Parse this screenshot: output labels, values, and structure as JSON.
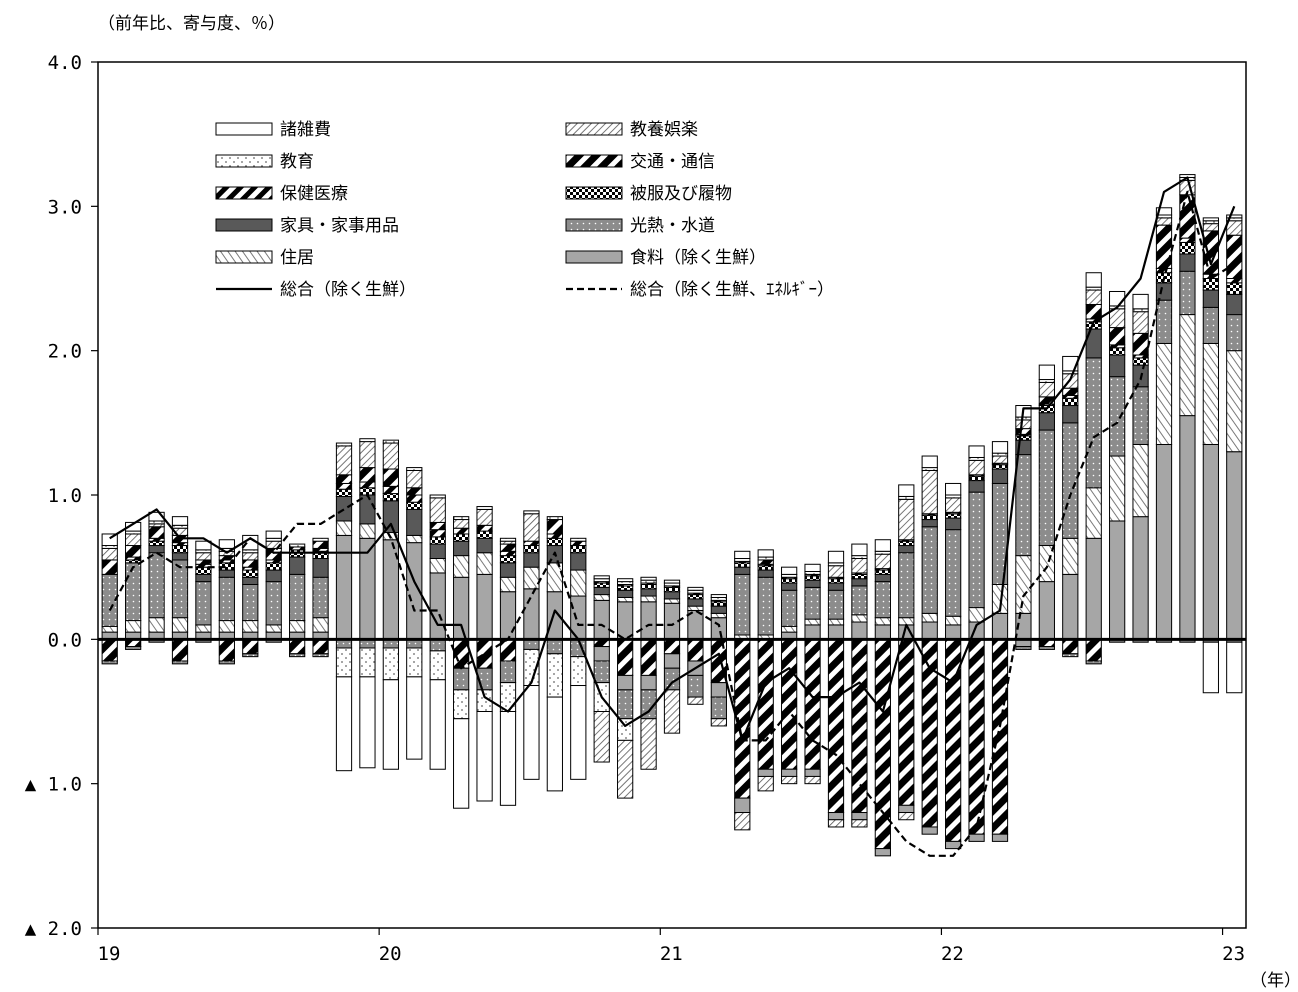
{
  "chart_data": {
    "type": "bar",
    "subtype": "stacked-bar-with-lines",
    "y_unit_label": "（前年比、寄与度、％）",
    "x_unit_label": "（年）",
    "ylim": [
      -2.0,
      4.0
    ],
    "y_ticks": [
      {
        "value": 4.0,
        "label": "4.0"
      },
      {
        "value": 3.0,
        "label": "3.0"
      },
      {
        "value": 2.0,
        "label": "2.0"
      },
      {
        "value": 1.0,
        "label": "1.0"
      },
      {
        "value": 0.0,
        "label": "0.0"
      },
      {
        "value": -1.0,
        "label": "▲ 1.0"
      },
      {
        "value": -2.0,
        "label": "▲ 2.0"
      }
    ],
    "x_ticks": [
      {
        "index": 0,
        "label": "19"
      },
      {
        "index": 12,
        "label": "20"
      },
      {
        "index": 24,
        "label": "21"
      },
      {
        "index": 36,
        "label": "22"
      },
      {
        "index": 48,
        "label": "23"
      }
    ],
    "months_count": 49,
    "legend_position": "top-left",
    "grid": false,
    "series": [
      {
        "name": "食料（除く生鮮）",
        "pattern": "food",
        "values": [
          0.05,
          0.05,
          0.05,
          0.05,
          0.05,
          0.05,
          0.05,
          0.05,
          0.05,
          0.05,
          0.72,
          0.7,
          0.69,
          0.67,
          0.46,
          0.43,
          0.45,
          0.33,
          0.35,
          0.33,
          0.3,
          0.27,
          0.26,
          0.26,
          0.25,
          0.2,
          0.15,
          0.0,
          0.0,
          0.05,
          0.1,
          0.1,
          0.12,
          0.1,
          0.1,
          0.12,
          0.1,
          0.12,
          0.18,
          0.18,
          0.4,
          0.45,
          0.7,
          0.82,
          0.85,
          1.35,
          1.55,
          1.35,
          1.3
        ]
      },
      {
        "name": "住居",
        "pattern": "housing",
        "values": [
          0.04,
          0.08,
          0.1,
          0.1,
          0.05,
          0.08,
          0.08,
          0.05,
          0.08,
          0.1,
          0.1,
          0.1,
          0.05,
          0.05,
          0.1,
          0.15,
          0.15,
          0.1,
          0.15,
          0.2,
          0.18,
          0.04,
          0.03,
          0.04,
          0.03,
          0.03,
          0.03,
          0.03,
          0.03,
          0.04,
          0.04,
          0.04,
          0.05,
          0.05,
          0.05,
          0.06,
          0.06,
          0.1,
          0.2,
          0.4,
          0.25,
          0.25,
          0.35,
          0.45,
          0.5,
          0.7,
          0.7,
          0.7,
          0.7
        ]
      },
      {
        "name": "光熱・水道",
        "pattern": "utilities",
        "values": [
          0.36,
          0.4,
          0.45,
          0.4,
          0.3,
          0.3,
          0.25,
          0.3,
          0.32,
          0.28,
          0.0,
          0.0,
          0.0,
          0.0,
          0.0,
          0.0,
          0.0,
          0.0,
          0.0,
          0.0,
          0.0,
          0.0,
          0.0,
          0.0,
          0.0,
          0.0,
          0.0,
          0.42,
          0.4,
          0.25,
          0.22,
          0.2,
          0.2,
          0.25,
          0.45,
          0.6,
          0.6,
          0.8,
          0.7,
          0.7,
          0.8,
          0.8,
          0.9,
          0.55,
          0.4,
          0.3,
          0.3,
          0.25,
          0.25
        ]
      },
      {
        "name": "家具・家事用品",
        "pattern": "furniture",
        "values": [
          0.0,
          0.0,
          0.05,
          0.05,
          0.05,
          0.05,
          0.05,
          0.08,
          0.12,
          0.13,
          0.17,
          0.2,
          0.22,
          0.18,
          0.1,
          0.1,
          0.1,
          0.1,
          0.1,
          0.12,
          0.12,
          0.05,
          0.05,
          0.05,
          0.05,
          0.05,
          0.05,
          0.05,
          0.05,
          0.05,
          0.05,
          0.05,
          0.05,
          0.05,
          0.05,
          0.05,
          0.08,
          0.08,
          0.1,
          0.1,
          0.12,
          0.12,
          0.2,
          0.15,
          0.15,
          0.12,
          0.12,
          0.12,
          0.14
        ]
      },
      {
        "name": "被服及び履物",
        "pattern": "clothing",
        "values": [
          0.0,
          0.02,
          0.03,
          0.05,
          0.05,
          0.05,
          0.05,
          0.05,
          0.05,
          0.05,
          0.05,
          0.05,
          0.05,
          0.05,
          0.05,
          0.05,
          0.05,
          0.05,
          0.05,
          0.05,
          0.05,
          0.03,
          0.03,
          0.03,
          0.03,
          0.03,
          0.03,
          0.03,
          0.03,
          0.03,
          0.03,
          0.03,
          0.03,
          0.03,
          0.03,
          0.03,
          0.03,
          0.03,
          0.03,
          0.03,
          0.05,
          0.05,
          0.05,
          0.05,
          0.05,
          0.07,
          0.08,
          0.08,
          0.08
        ]
      },
      {
        "name": "保健医療",
        "pattern": "medical",
        "values": [
          0.0,
          0.02,
          0.02,
          0.02,
          0.02,
          0.02,
          0.02,
          0.02,
          0.02,
          0.02,
          0.04,
          0.04,
          0.05,
          0.05,
          0.05,
          0.04,
          0.04,
          0.03,
          0.03,
          0.03,
          0.03,
          0.01,
          0.01,
          0.01,
          0.01,
          0.01,
          0.01,
          0.01,
          0.01,
          0.01,
          0.01,
          0.01,
          0.01,
          0.01,
          0.01,
          0.01,
          0.01,
          0.01,
          0.01,
          0.01,
          0.01,
          0.02,
          0.02,
          0.02,
          0.02,
          0.03,
          0.03,
          0.03,
          0.03
        ]
      },
      {
        "name": "交通・通信",
        "pattern": "transport",
        "values": [
          0.1,
          0.08,
          0.08,
          0.05,
          0.03,
          0.03,
          0.05,
          0.08,
          0.0,
          0.05,
          0.06,
          0.1,
          0.12,
          0.05,
          0.05,
          0.0,
          0.0,
          0.05,
          0.0,
          0.1,
          0.0,
          0.0,
          0.0,
          0.0,
          0.0,
          0.0,
          0.0,
          0.0,
          0.03,
          0.0,
          0.0,
          0.0,
          0.0,
          0.0,
          0.0,
          0.0,
          0.0,
          0.0,
          0.0,
          0.04,
          0.05,
          0.05,
          0.1,
          0.12,
          0.15,
          0.3,
          0.3,
          0.3,
          0.3
        ]
      },
      {
        "name": "教養娯楽",
        "pattern": "culture",
        "values": [
          0.08,
          0.08,
          0.02,
          0.05,
          0.05,
          0.03,
          0.05,
          0.05,
          0.0,
          0.0,
          0.2,
          0.18,
          0.18,
          0.12,
          0.17,
          0.06,
          0.11,
          0.02,
          0.19,
          0.0,
          0.0,
          0.0,
          0.0,
          0.0,
          0.0,
          0.0,
          0.0,
          0.0,
          0.0,
          0.0,
          0.0,
          0.08,
          0.1,
          0.1,
          0.28,
          0.3,
          0.1,
          0.1,
          0.05,
          0.06,
          0.1,
          0.1,
          0.1,
          0.13,
          0.15,
          0.05,
          0.1,
          0.05,
          0.1
        ]
      },
      {
        "name": "教育",
        "pattern": "education",
        "values": [
          0.02,
          0.02,
          0.02,
          0.02,
          0.02,
          0.02,
          0.02,
          0.02,
          0.02,
          0.02,
          0.02,
          0.02,
          0.02,
          0.02,
          0.02,
          0.02,
          0.02,
          0.02,
          0.02,
          0.02,
          0.02,
          0.02,
          0.02,
          0.02,
          0.02,
          0.02,
          0.02,
          0.02,
          0.02,
          0.02,
          0.02,
          0.02,
          0.02,
          0.02,
          0.02,
          0.02,
          0.02,
          0.02,
          0.02,
          0.02,
          0.02,
          0.02,
          0.02,
          0.02,
          0.02,
          0.02,
          0.02,
          0.02,
          0.02
        ]
      },
      {
        "name": "諸雑費",
        "pattern": "misc",
        "values": [
          0.08,
          0.06,
          0.06,
          0.06,
          0.06,
          0.06,
          0.1,
          0.05,
          0.0,
          0.0,
          0.0,
          0.0,
          0.0,
          0.0,
          0.0,
          0.0,
          0.0,
          0.0,
          0.0,
          0.0,
          0.0,
          0.02,
          0.02,
          0.02,
          0.02,
          0.02,
          0.02,
          0.05,
          0.05,
          0.05,
          0.05,
          0.08,
          0.08,
          0.08,
          0.08,
          0.08,
          0.08,
          0.08,
          0.08,
          0.08,
          0.1,
          0.1,
          0.1,
          0.1,
          0.1,
          0.05,
          0.02,
          0.02,
          0.02
        ]
      }
    ],
    "negative_series": [
      {
        "name": "交通・通信",
        "pattern": "transport",
        "values": [
          -0.15,
          -0.05,
          0.0,
          -0.15,
          0.0,
          -0.15,
          -0.1,
          0.0,
          -0.1,
          -0.1,
          0.0,
          0.0,
          0.0,
          0.0,
          0.0,
          -0.2,
          -0.2,
          -0.15,
          0.0,
          0.0,
          0.0,
          -0.05,
          -0.25,
          -0.25,
          -0.1,
          -0.15,
          -0.3,
          -1.1,
          -0.9,
          -0.9,
          -0.9,
          -1.2,
          -1.2,
          -1.45,
          -1.15,
          -1.3,
          -1.4,
          -1.35,
          -1.35,
          0.0,
          -0.05,
          -0.1,
          -0.15,
          0.0,
          0.0,
          0.0,
          0.0,
          0.0,
          0.0
        ]
      },
      {
        "name": "食料（除く生鮮）",
        "pattern": "food",
        "values": [
          0.0,
          0.0,
          0.0,
          0.0,
          0.0,
          0.0,
          0.0,
          0.0,
          0.0,
          0.0,
          0.0,
          0.0,
          0.0,
          0.0,
          0.0,
          0.0,
          0.0,
          0.0,
          0.0,
          0.0,
          0.0,
          -0.1,
          -0.1,
          -0.1,
          -0.1,
          -0.1,
          -0.1,
          -0.1,
          -0.05,
          -0.05,
          -0.05,
          -0.05,
          -0.05,
          -0.05,
          -0.05,
          -0.05,
          -0.05,
          -0.05,
          -0.05,
          -0.05,
          0.0,
          0.0,
          0.0,
          0.0,
          0.0,
          0.0,
          0.0,
          0.0,
          0.0
        ]
      },
      {
        "name": "光熱・水道",
        "pattern": "utilities",
        "values": [
          -0.02,
          -0.02,
          -0.02,
          -0.02,
          -0.02,
          -0.02,
          -0.02,
          -0.02,
          -0.02,
          -0.02,
          -0.06,
          -0.06,
          -0.06,
          -0.06,
          -0.08,
          -0.15,
          -0.15,
          -0.15,
          -0.07,
          -0.1,
          -0.12,
          -0.15,
          -0.2,
          -0.2,
          -0.15,
          -0.15,
          -0.15,
          0.0,
          0.0,
          0.0,
          0.0,
          0.0,
          0.0,
          0.0,
          0.0,
          0.0,
          0.0,
          0.0,
          0.0,
          -0.02,
          -0.02,
          -0.02,
          -0.02,
          -0.02,
          -0.02,
          -0.02,
          -0.02,
          -0.02,
          -0.02
        ]
      },
      {
        "name": "教育",
        "pattern": "education",
        "values": [
          0.0,
          0.0,
          0.0,
          0.0,
          0.0,
          0.0,
          0.0,
          0.0,
          0.0,
          0.0,
          -0.2,
          -0.2,
          -0.22,
          -0.2,
          -0.2,
          -0.2,
          -0.15,
          -0.2,
          -0.25,
          -0.3,
          -0.2,
          -0.2,
          -0.15,
          0.0,
          0.0,
          0.0,
          0.0,
          0.0,
          0.0,
          0.0,
          0.0,
          0.0,
          0.0,
          0.0,
          0.0,
          0.0,
          0.0,
          0.0,
          0.0,
          0.0,
          0.0,
          0.0,
          0.0,
          0.0,
          0.0,
          0.0,
          0.0,
          0.0,
          0.0
        ]
      },
      {
        "name": "教養娯楽",
        "pattern": "culture",
        "values": [
          0.0,
          0.0,
          0.0,
          0.0,
          0.0,
          0.0,
          0.0,
          0.0,
          0.0,
          0.0,
          0.0,
          0.0,
          0.0,
          0.0,
          0.0,
          0.0,
          0.0,
          0.0,
          0.0,
          0.0,
          0.0,
          -0.35,
          -0.4,
          -0.35,
          -0.3,
          -0.05,
          -0.05,
          -0.12,
          -0.1,
          -0.05,
          -0.05,
          -0.05,
          -0.05,
          0.0,
          -0.05,
          0.0,
          0.0,
          0.0,
          0.0,
          0.0,
          0.0,
          0.0,
          0.0,
          0.0,
          0.0,
          0.0,
          0.0,
          0.0,
          0.0
        ]
      },
      {
        "name": "諸雑費",
        "pattern": "misc",
        "values": [
          0.0,
          0.0,
          0.0,
          0.0,
          0.0,
          0.0,
          0.0,
          0.0,
          0.0,
          0.0,
          -0.65,
          -0.63,
          -0.62,
          -0.57,
          -0.62,
          -0.62,
          -0.62,
          -0.65,
          -0.65,
          -0.65,
          -0.65,
          0.0,
          0.0,
          0.0,
          0.0,
          0.0,
          0.0,
          0.0,
          0.0,
          0.0,
          0.0,
          0.0,
          0.0,
          0.0,
          0.0,
          0.0,
          0.0,
          0.0,
          0.0,
          0.0,
          0.0,
          0.0,
          0.0,
          0.0,
          0.0,
          0.0,
          0.0,
          -0.35,
          -0.35
        ]
      }
    ],
    "lines": [
      {
        "name": "総合（除く生鮮）",
        "style": "solid",
        "values": [
          0.7,
          0.8,
          0.9,
          0.7,
          0.7,
          0.6,
          0.7,
          0.6,
          0.6,
          0.6,
          0.6,
          0.6,
          0.8,
          0.4,
          0.1,
          0.1,
          -0.4,
          -0.5,
          -0.3,
          0.2,
          0.0,
          -0.4,
          -0.6,
          -0.5,
          -0.3,
          -0.2,
          -0.1,
          -0.7,
          -0.3,
          -0.2,
          -0.4,
          -0.4,
          -0.3,
          -0.5,
          0.1,
          -0.2,
          -0.3,
          0.1,
          0.2,
          1.6,
          1.6,
          1.8,
          2.2,
          2.3,
          2.5,
          3.1,
          3.2,
          2.6,
          3.0
        ]
      },
      {
        "name": "総合（除く生鮮、ｴﾈﾙｷﾞｰ）",
        "style": "dashed",
        "values": [
          0.2,
          0.5,
          0.6,
          0.5,
          0.5,
          0.5,
          0.7,
          0.6,
          0.8,
          0.8,
          0.9,
          1.0,
          0.7,
          0.2,
          0.2,
          -0.2,
          -0.1,
          0.0,
          0.3,
          0.6,
          0.1,
          0.1,
          0.0,
          0.1,
          0.1,
          0.2,
          0.1,
          -0.7,
          -0.7,
          -0.5,
          -0.7,
          -0.8,
          -1.0,
          -1.2,
          -1.4,
          -1.5,
          -1.5,
          -1.3,
          -0.6,
          0.3,
          0.5,
          1.0,
          1.4,
          1.5,
          1.8,
          2.5,
          3.1,
          2.5,
          2.6
        ]
      }
    ],
    "legend": [
      {
        "label": "諸雑費",
        "pattern": "misc",
        "kind": "box"
      },
      {
        "label": "教養娯楽",
        "pattern": "culture",
        "kind": "box"
      },
      {
        "label": "教育",
        "pattern": "education",
        "kind": "box"
      },
      {
        "label": "交通・通信",
        "pattern": "transport",
        "kind": "box"
      },
      {
        "label": "保健医療",
        "pattern": "medical",
        "kind": "box"
      },
      {
        "label": "被服及び履物",
        "pattern": "clothing",
        "kind": "box"
      },
      {
        "label": "家具・家事用品",
        "pattern": "furniture",
        "kind": "box"
      },
      {
        "label": "光熱・水道",
        "pattern": "utilities",
        "kind": "box"
      },
      {
        "label": "住居",
        "pattern": "housing",
        "kind": "box"
      },
      {
        "label": "食料（除く生鮮）",
        "pattern": "food",
        "kind": "box"
      },
      {
        "label": "総合（除く生鮮）",
        "pattern": "solid",
        "kind": "line"
      },
      {
        "label": "総合（除く生鮮、ｴﾈﾙｷﾞｰ）",
        "pattern": "dashed",
        "kind": "line"
      }
    ]
  }
}
